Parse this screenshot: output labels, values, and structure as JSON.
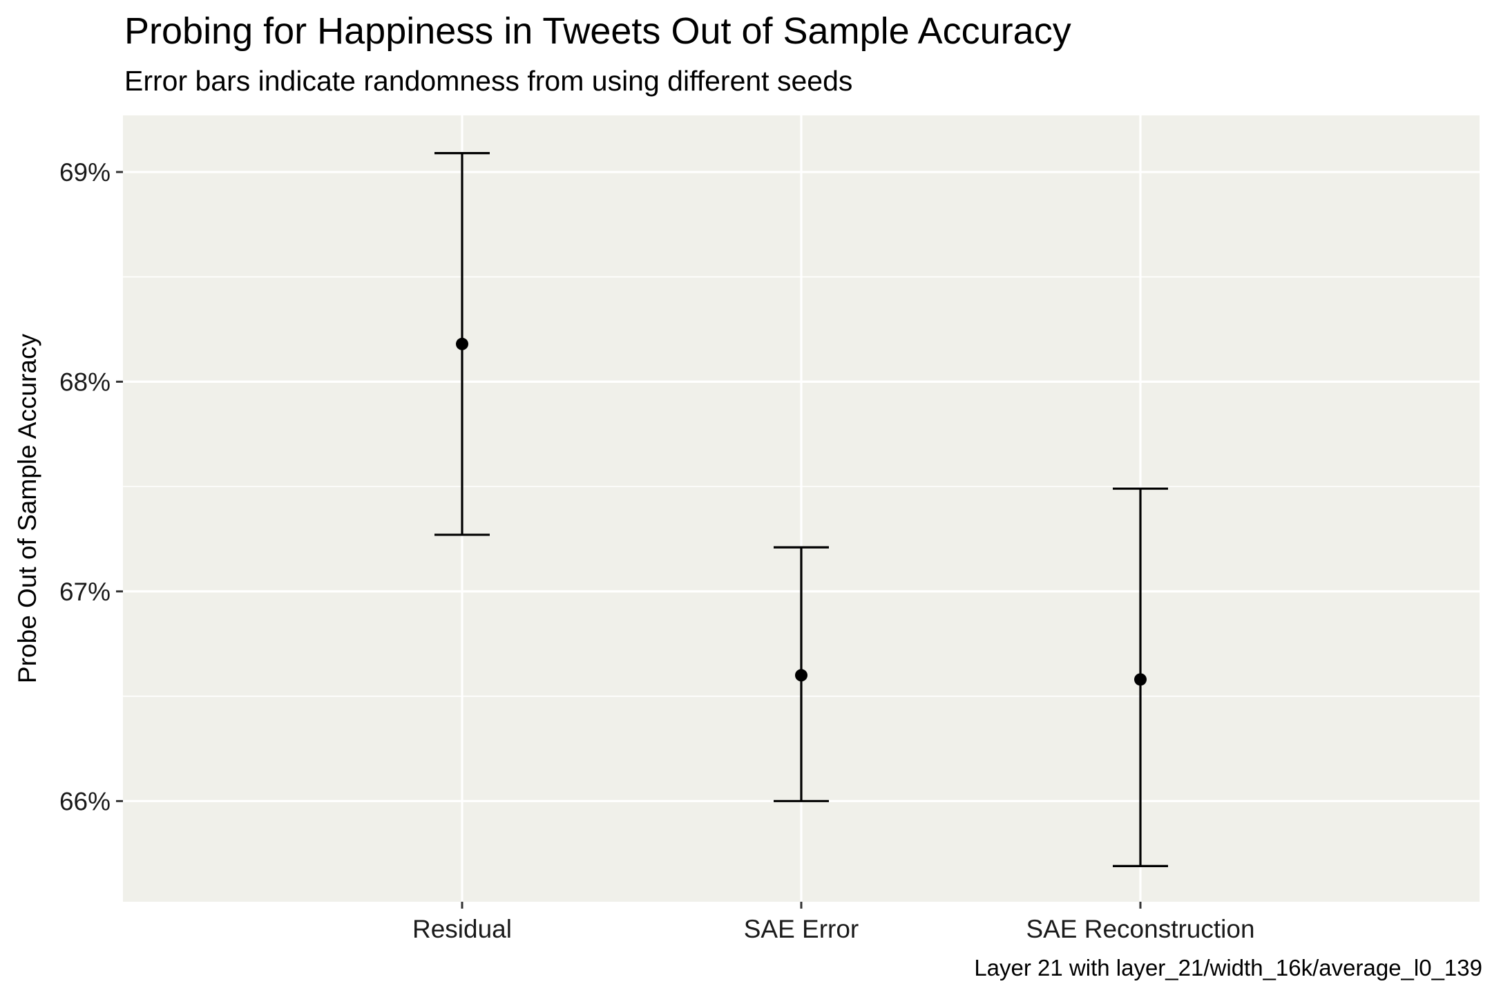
{
  "chart_data": {
    "type": "scatter",
    "title": "Probing for Happiness in Tweets Out of Sample Accuracy",
    "subtitle": "Error bars indicate randomness from using different seeds",
    "caption": "Layer 21 with layer_21/width_16k/average_l0_139",
    "xlabel": "",
    "ylabel": "Probe Out of Sample Accuracy",
    "categories": [
      "Residual",
      "SAE Error",
      "SAE Reconstruction"
    ],
    "points": [
      {
        "category": "Residual",
        "value": 68.18,
        "error_low": 67.27,
        "error_high": 69.09
      },
      {
        "category": "SAE Error",
        "value": 66.6,
        "error_low": 66.0,
        "error_high": 67.21
      },
      {
        "category": "SAE Reconstruction",
        "value": 66.58,
        "error_low": 65.69,
        "error_high": 67.49
      }
    ],
    "yticks": [
      66,
      67,
      68,
      69
    ],
    "ytick_labels": [
      "66%",
      "67%",
      "68%",
      "69%"
    ],
    "ylim": [
      65.52,
      69.27
    ],
    "grid": true,
    "colors": {
      "panel": "#f0f0ea",
      "grid": "#ffffff",
      "marks": "#000000"
    }
  }
}
